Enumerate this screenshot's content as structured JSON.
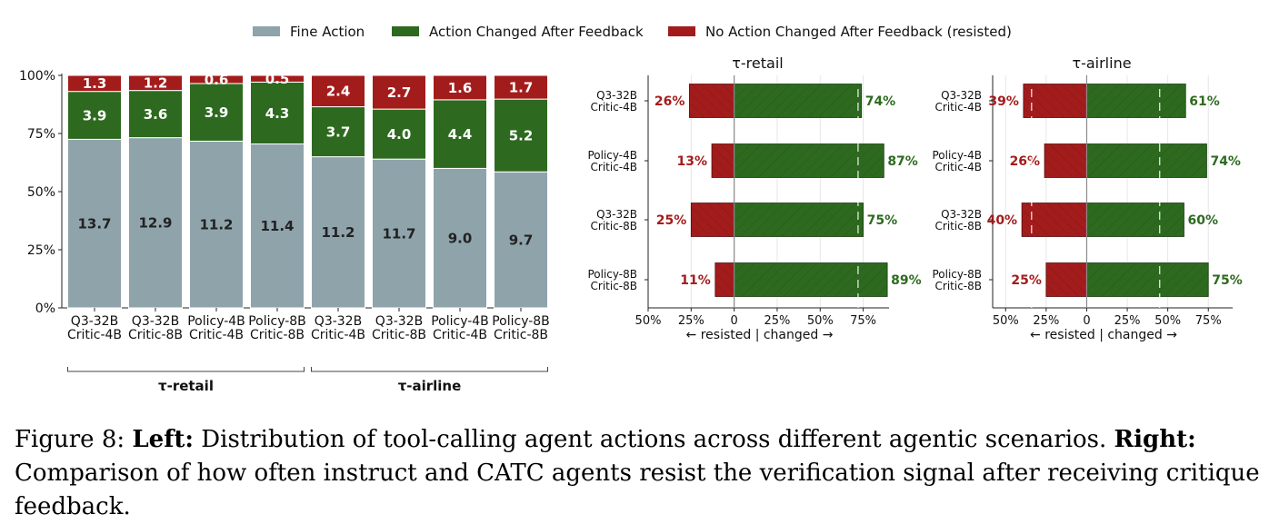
{
  "legend": {
    "items": [
      {
        "label": "Fine Action",
        "color": "#8fa3ab"
      },
      {
        "label": "Action Changed After Feedback",
        "color": "#2d6a1f"
      },
      {
        "label": "No Action Changed After Feedback (resisted)",
        "color": "#a31c1c"
      }
    ]
  },
  "chart_data": [
    {
      "type": "bar",
      "stacked": true,
      "categories": [
        [
          "Q3-32B",
          "Critic-4B"
        ],
        [
          "Q3-32B",
          "Critic-8B"
        ],
        [
          "Policy-4B",
          "Critic-4B"
        ],
        [
          "Policy-8B",
          "Critic-8B"
        ],
        [
          "Q3-32B",
          "Critic-4B"
        ],
        [
          "Q3-32B",
          "Critic-8B"
        ],
        [
          "Policy-4B",
          "Critic-4B"
        ],
        [
          "Policy-8B",
          "Critic-8B"
        ]
      ],
      "groups": [
        {
          "label": "τ-retail",
          "start": 0,
          "end": 3
        },
        {
          "label": "τ-airline",
          "start": 4,
          "end": 7
        }
      ],
      "yticks": [
        "0%",
        "25%",
        "50%",
        "75%",
        "100%"
      ],
      "ylim": [
        0,
        100
      ],
      "series": [
        {
          "name": "Fine Action",
          "color": "#8fa3ab",
          "label_color": "#222222",
          "values": [
            72.5,
            73.2,
            71.7,
            70.5,
            65.0,
            64.0,
            60.0,
            58.5
          ],
          "labels": [
            "13.7",
            "12.9",
            "11.2",
            "11.4",
            "11.2",
            "11.7",
            "9.0",
            "9.7"
          ]
        },
        {
          "name": "Action Changed After Feedback",
          "color": "#2d6a1f",
          "label_color": "#ffffff",
          "values": [
            20.6,
            20.3,
            24.8,
            26.6,
            21.5,
            21.5,
            29.5,
            31.3
          ],
          "labels": [
            "3.9",
            "3.6",
            "3.9",
            "4.3",
            "3.7",
            "4.0",
            "4.4",
            "5.2"
          ]
        },
        {
          "name": "No Action Changed After Feedback (resisted)",
          "color": "#a31c1c",
          "label_color": "#ffffff",
          "values": [
            6.9,
            6.5,
            3.5,
            2.9,
            13.5,
            14.5,
            10.5,
            10.2
          ],
          "labels": [
            "1.3",
            "1.2",
            "0.6",
            "0.5",
            "2.4",
            "2.7",
            "1.6",
            "1.7"
          ]
        }
      ]
    },
    {
      "type": "bar",
      "orientation": "horizontal",
      "title": "τ-retail",
      "categories": [
        [
          "Q3-32B",
          "Critic-4B"
        ],
        [
          "Policy-4B",
          "Critic-4B"
        ],
        [
          "Q3-32B",
          "Critic-8B"
        ],
        [
          "Policy-8B",
          "Critic-8B"
        ]
      ],
      "resisted": [
        26,
        13,
        25,
        11
      ],
      "changed": [
        74,
        87,
        75,
        89
      ],
      "xlim": [
        -50,
        90
      ],
      "xticks": [
        -50,
        -25,
        0,
        25,
        50,
        75
      ],
      "xtick_labels": [
        "50%",
        "25%",
        "0",
        "25%",
        "50%",
        "75%"
      ],
      "xlabel": "← resisted   |   changed →",
      "reference_line": 72
    },
    {
      "type": "bar",
      "orientation": "horizontal",
      "title": "τ-airline",
      "categories": [
        [
          "Q3-32B",
          "Critic-4B"
        ],
        [
          "Policy-4B",
          "Critic-4B"
        ],
        [
          "Q3-32B",
          "Critic-8B"
        ],
        [
          "Policy-8B",
          "Critic-8B"
        ]
      ],
      "resisted": [
        39,
        26,
        40,
        25
      ],
      "changed": [
        61,
        74,
        60,
        75
      ],
      "xlim": [
        -58,
        90
      ],
      "xticks": [
        -50,
        -25,
        0,
        25,
        50,
        75
      ],
      "xtick_labels": [
        "50%",
        "25%",
        "0",
        "25%",
        "50%",
        "75%"
      ],
      "xlabel": "← resisted   |   changed →",
      "reference_line": 45
    }
  ],
  "caption": {
    "figure_label": "Figure 8: ",
    "left_label": "Left:",
    "left_text": " Distribution of tool-calling agent actions across different agentic scenarios. ",
    "right_label": "Right:",
    "right_text": " Comparison of how often instruct and CATC agents resist the verification signal after receiving critique feedback."
  }
}
